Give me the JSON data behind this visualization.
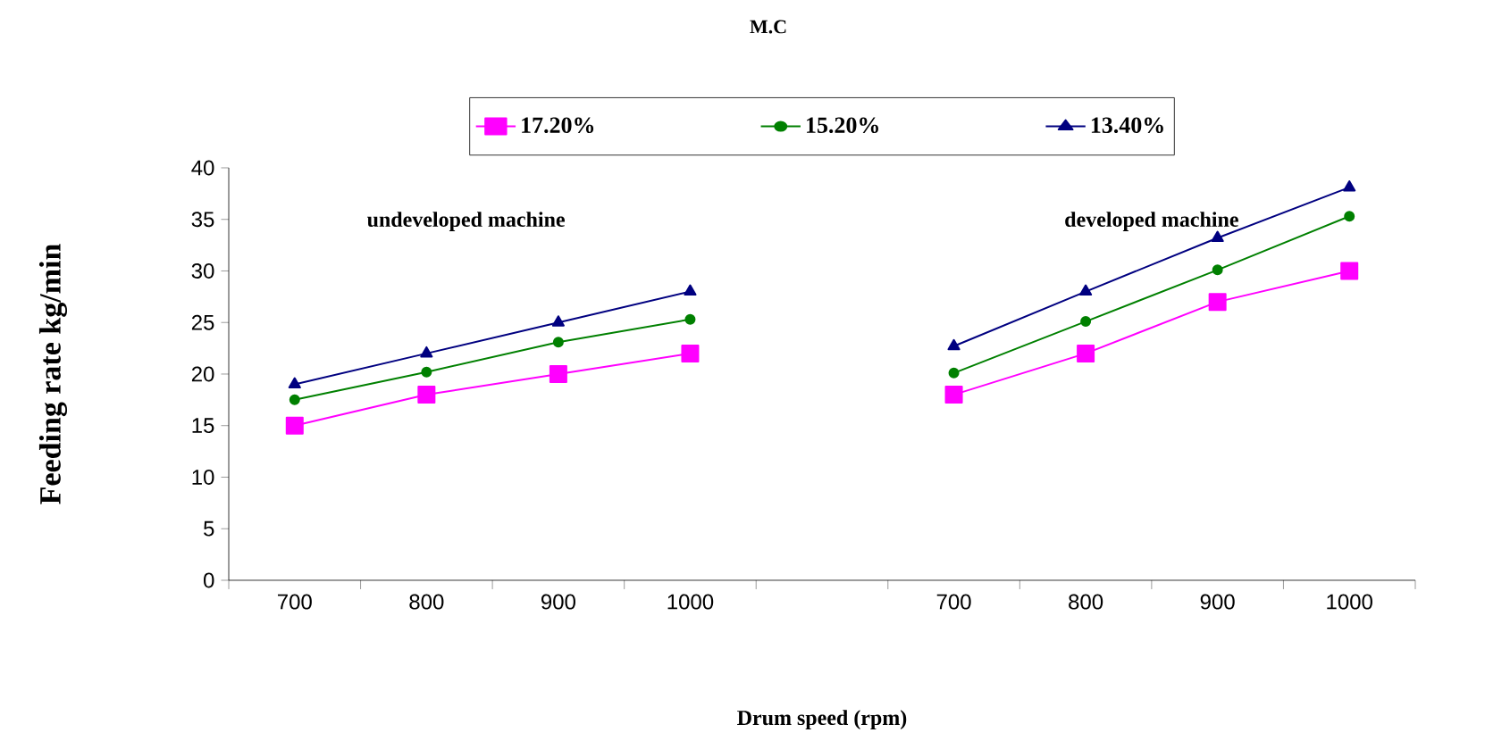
{
  "chart_data": {
    "type": "line",
    "title": "M.C",
    "xlabel": "Drum speed (rpm)",
    "ylabel": "Feeding rate kg/min",
    "categories": [
      "700",
      "800",
      "900",
      "1000",
      null,
      "700",
      "800",
      "900",
      "1000"
    ],
    "series": [
      {
        "name": "17.20%",
        "color": "#ff00ff",
        "marker": "square",
        "values": [
          15,
          18,
          20,
          22,
          null,
          18,
          22,
          27,
          30
        ]
      },
      {
        "name": "15.20%",
        "color": "#008000",
        "marker": "circle",
        "values": [
          17.5,
          20.2,
          23.1,
          25.3,
          null,
          20.1,
          25.1,
          30.1,
          35.3
        ]
      },
      {
        "name": "13.40%",
        "color": "#000080",
        "marker": "triangle",
        "values": [
          19,
          22,
          25,
          28,
          null,
          22.7,
          28,
          33.2,
          38.1
        ]
      }
    ],
    "annotations": [
      "undeveloped machine",
      "developed machine"
    ],
    "ylim": [
      0,
      40
    ],
    "yticks": [
      0,
      5,
      10,
      15,
      20,
      25,
      30,
      35,
      40
    ],
    "legend": "top",
    "grid": false,
    "line_style": "solid"
  }
}
